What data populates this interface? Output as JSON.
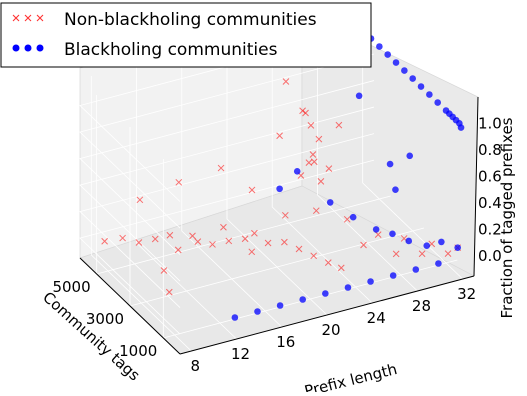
{
  "chart_data": {
    "type": "scatter",
    "projection": "3d",
    "title": "",
    "xlabel": "Prefix length",
    "ylabel": "Community tags",
    "zlabel": "Fraction of tagged prefixes",
    "xlim": [
      7,
      33
    ],
    "ylim": [
      0,
      6000
    ],
    "zlim": [
      -0.15,
      1.2
    ],
    "xticks": [
      "8",
      "12",
      "16",
      "20",
      "24",
      "28",
      "32"
    ],
    "yticks": [
      "5000",
      "3000",
      "1000"
    ],
    "zticks": [
      "0.0",
      "0.2",
      "0.4",
      "0.6",
      "0.8",
      "1.0"
    ],
    "legend_position": "top-left",
    "grid": true,
    "series": [
      {
        "name": "Non-blackholing communities",
        "marker": "x",
        "color": "#ff0000",
        "note": "dense cloud: most points at fraction 0.0-0.35 across prefix lengths 8-32 and tags 0-5500; a vertical band of high fractions (up to ~1.0) around prefix length 22-24",
        "points": [
          [
            8,
            5200,
            0.05
          ],
          [
            9,
            4800,
            0.1
          ],
          [
            10,
            4500,
            0.08
          ],
          [
            11,
            4200,
            0.12
          ],
          [
            12,
            4000,
            0.15
          ],
          [
            12,
            3500,
            0.1
          ],
          [
            13,
            3000,
            0.2
          ],
          [
            14,
            2800,
            0.18
          ],
          [
            15,
            2500,
            0.22
          ],
          [
            16,
            2200,
            0.25
          ],
          [
            16,
            1800,
            0.2
          ],
          [
            17,
            1500,
            0.28
          ],
          [
            18,
            1200,
            0.3
          ],
          [
            19,
            1000,
            0.25
          ],
          [
            20,
            800,
            0.2
          ],
          [
            21,
            600,
            0.15
          ],
          [
            22,
            500,
            0.1
          ],
          [
            10,
            3000,
            0.05
          ],
          [
            14,
            4000,
            0.1
          ],
          [
            18,
            3000,
            0.15
          ],
          [
            20,
            2500,
            0.3
          ],
          [
            22,
            2000,
            0.35
          ],
          [
            24,
            1500,
            0.3
          ],
          [
            26,
            1000,
            0.2
          ],
          [
            28,
            800,
            0.15
          ],
          [
            30,
            500,
            0.1
          ],
          [
            32,
            300,
            0.05
          ],
          [
            23,
            3500,
            0.9
          ],
          [
            23,
            3000,
            0.85
          ],
          [
            24,
            3200,
            0.7
          ],
          [
            23,
            2800,
            0.6
          ],
          [
            24,
            2600,
            0.55
          ],
          [
            23,
            2400,
            0.5
          ],
          [
            24,
            4000,
            0.8
          ],
          [
            22,
            4200,
            0.65
          ],
          [
            24,
            3800,
            0.45
          ],
          [
            23,
            3600,
            0.4
          ],
          [
            22,
            2200,
            0.75
          ],
          [
            24,
            2000,
            0.95
          ],
          [
            23,
            4500,
            1.0
          ],
          [
            18,
            5000,
            0.4
          ],
          [
            15,
            5500,
            0.3
          ],
          [
            12,
            5800,
            0.2
          ],
          [
            25,
            1200,
            0.12
          ],
          [
            27,
            600,
            0.08
          ],
          [
            29,
            400,
            0.06
          ],
          [
            31,
            200,
            0.04
          ],
          [
            20,
            4500,
            0.25
          ],
          [
            16,
            3500,
            0.18
          ],
          [
            9,
            2000,
            0.03
          ]
        ]
      },
      {
        "name": "Blackholing communities",
        "marker": "o",
        "color": "#0000ff",
        "note": "mostly fraction 1.0 at prefix length 32 across tags, plus points near fraction 0 along low tag values",
        "points": [
          [
            32,
            5500,
            1.0
          ],
          [
            32,
            5000,
            1.0
          ],
          [
            32,
            4500,
            1.0
          ],
          [
            32,
            4000,
            1.0
          ],
          [
            32,
            3500,
            1.0
          ],
          [
            32,
            3000,
            1.0
          ],
          [
            32,
            2500,
            1.0
          ],
          [
            32,
            2000,
            1.0
          ],
          [
            32,
            1500,
            1.0
          ],
          [
            32,
            1000,
            1.0
          ],
          [
            32,
            800,
            1.0
          ],
          [
            32,
            600,
            1.0
          ],
          [
            32,
            400,
            1.0
          ],
          [
            32,
            200,
            1.0
          ],
          [
            32,
            100,
            0.98
          ],
          [
            30,
            5000,
            0.95
          ],
          [
            28,
            3500,
            0.9
          ],
          [
            31,
            2500,
            0.5
          ],
          [
            30,
            3000,
            0.4
          ],
          [
            29,
            2000,
            0.35
          ],
          [
            24,
            4500,
            0.3
          ],
          [
            22,
            4200,
            0.25
          ],
          [
            26,
            2500,
            0.15
          ],
          [
            28,
            1500,
            0.1
          ],
          [
            30,
            800,
            0.05
          ],
          [
            32,
            300,
            0.05
          ],
          [
            31,
            600,
            0.08
          ],
          [
            27,
            1800,
            0.12
          ],
          [
            25,
            3200,
            0.2
          ],
          [
            29,
            1200,
            0.06
          ],
          [
            12,
            100,
            0.0
          ],
          [
            14,
            100,
            0.0
          ],
          [
            16,
            100,
            0.0
          ],
          [
            18,
            100,
            0.0
          ],
          [
            20,
            100,
            0.0
          ],
          [
            22,
            100,
            0.0
          ],
          [
            24,
            100,
            0.0
          ],
          [
            26,
            100,
            0.0
          ],
          [
            28,
            100,
            0.0
          ],
          [
            30,
            100,
            0.0
          ]
        ]
      }
    ]
  }
}
